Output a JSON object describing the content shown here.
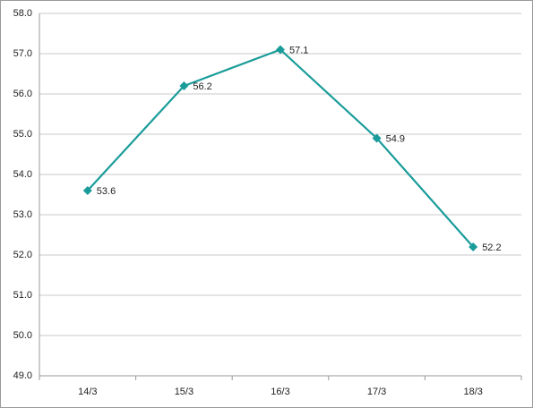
{
  "chart_data": {
    "type": "line",
    "categories": [
      "14/3",
      "15/3",
      "16/3",
      "17/3",
      "18/3"
    ],
    "series": [
      {
        "color": "#1a9c9a",
        "values": [
          53.6,
          56.2,
          57.1,
          54.9,
          52.2
        ]
      }
    ],
    "ylim": [
      49,
      58
    ],
    "yticks": [
      {
        "value": 49,
        "label": "49.0"
      },
      {
        "value": 50,
        "label": "50.0"
      },
      {
        "value": 51,
        "label": "51.0"
      },
      {
        "value": 52,
        "label": "52.0"
      },
      {
        "value": 53,
        "label": "53.0"
      },
      {
        "value": 54,
        "label": "54.0"
      },
      {
        "value": 55,
        "label": "55.0"
      },
      {
        "value": 56,
        "label": "56.0"
      },
      {
        "value": 57,
        "label": "57.0"
      },
      {
        "value": 58,
        "label": "58.0"
      }
    ],
    "grid": true
  }
}
